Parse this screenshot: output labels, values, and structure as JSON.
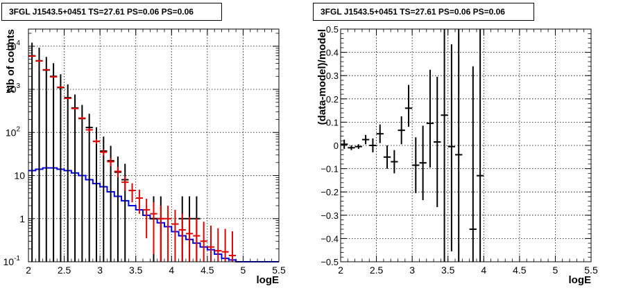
{
  "panels": [
    {
      "title": "3FGL J1543.5+0451 TS=27.61 PS=0.06 PS=0.06",
      "xlabel": "logE",
      "ylabel": "Nb of counts"
    },
    {
      "title": "3FGL J1543.5+0451 TS=27.61 PS=0.06 PS=0.06",
      "xlabel": "logE",
      "ylabel": "(data-model)/model"
    }
  ],
  "chart_data": [
    {
      "type": "line",
      "title": "3FGL J1543.5+0451 TS=27.61 PS=0.06 PS=0.06",
      "xlabel": "logE",
      "ylabel": "Nb of counts",
      "xlim": [
        2,
        5.5
      ],
      "ylim": [
        0.1,
        25000
      ],
      "yscale": "log",
      "grid": true,
      "xticks": [
        "2",
        "2.5",
        "3",
        "3.5",
        "4",
        "4.5",
        "5",
        "5.5"
      ],
      "yticks": [
        {
          "value": 0.1,
          "label": "10",
          "exp": "-1"
        },
        {
          "value": 1,
          "label": "1",
          "exp": ""
        },
        {
          "value": 10,
          "label": "10",
          "exp": ""
        },
        {
          "value": 100,
          "label": "10",
          "exp": "2"
        },
        {
          "value": 1000,
          "label": "10",
          "exp": "3"
        },
        {
          "value": 10000,
          "label": "10",
          "exp": "4"
        }
      ],
      "bin_width": 0.1,
      "bin_centers": [
        2.05,
        2.15,
        2.25,
        2.35,
        2.45,
        2.55,
        2.65,
        2.75,
        2.85,
        2.95,
        3.05,
        3.15,
        3.25,
        3.35,
        3.45,
        3.55,
        3.65,
        3.75,
        3.85,
        3.95,
        4.05,
        4.15,
        4.25,
        4.35,
        4.45,
        4.55,
        4.65,
        4.75,
        4.85,
        4.95,
        5.05,
        5.15,
        5.25,
        5.35,
        5.45
      ],
      "series": [
        {
          "name": "",
          "style": "data",
          "color": "#000000",
          "values": [
            6000,
            4600,
            2800,
            2000,
            1100,
            640,
            370,
            210,
            130,
            62,
            37,
            22,
            12,
            8,
            0,
            0,
            0,
            1,
            1,
            0,
            0,
            1,
            1,
            1,
            0,
            0,
            0,
            0,
            0,
            0,
            0,
            0,
            0,
            0,
            0
          ],
          "err_lo": [
            6000,
            4600,
            2800,
            2000,
            1100,
            640,
            370,
            210,
            130,
            62,
            37,
            22,
            12,
            8,
            0,
            0,
            0,
            1,
            1,
            0,
            0,
            1,
            1,
            1,
            0,
            0,
            0,
            0,
            0,
            0,
            0,
            0,
            0,
            0,
            0
          ],
          "err_hi": [
            6080,
            4670,
            2850,
            2045,
            1133,
            665,
            389,
            225,
            141,
            70,
            43,
            27,
            15.5,
            10.8,
            0,
            0,
            0,
            2.3,
            2.3,
            0,
            0,
            2.3,
            2.3,
            2.3,
            0,
            0,
            0,
            0,
            0,
            0,
            0,
            0,
            0,
            0,
            0
          ]
        },
        {
          "name": "",
          "style": "model",
          "color": "#e00000",
          "values": [
            5900,
            4550,
            2850,
            1950,
            1120,
            620,
            360,
            215,
            115,
            62,
            35,
            21,
            12.5,
            7,
            4.5,
            3,
            1.6,
            1.3,
            1,
            1,
            0.75,
            0.55,
            0.45,
            0.4,
            0.3,
            0.22,
            0.18,
            0.17,
            0.14,
            0,
            0,
            0,
            0,
            0,
            0
          ],
          "err_lo": [
            5823,
            4483,
            2797,
            1906,
            1087,
            595,
            341,
            200,
            104,
            54,
            29,
            16.4,
            9,
            4.4,
            2.4,
            1.3,
            0.35,
            0.15,
            0,
            0,
            0,
            0,
            0,
            0,
            0,
            0,
            0,
            0,
            0,
            0,
            0,
            0,
            0,
            0,
            0
          ],
          "err_hi": [
            5977,
            4617,
            2903,
            1994,
            1153,
            645,
            379,
            230,
            126,
            70,
            41,
            25.6,
            16,
            9.6,
            6.6,
            4.7,
            2.9,
            2.4,
            2,
            2,
            1.6,
            1.3,
            1.1,
            1.03,
            0.85,
            0.69,
            0.6,
            0.58,
            0.51,
            0,
            0,
            0,
            0,
            0,
            0
          ]
        },
        {
          "name": "",
          "style": "step",
          "color": "#0000e0",
          "values": [
            13,
            14,
            15,
            15,
            14,
            13,
            11.5,
            10,
            8,
            6.5,
            5.5,
            4.2,
            3.3,
            2.6,
            2,
            1.6,
            1.2,
            1.0,
            0.8,
            0.65,
            0.5,
            0.4,
            0.33,
            0.27,
            0.22,
            0.19,
            0.15,
            0.12,
            0.11,
            0.1,
            0.1,
            0.1,
            0.1,
            0.1,
            0.1
          ]
        }
      ]
    },
    {
      "type": "scatter",
      "title": "3FGL J1543.5+0451 TS=27.61 PS=0.06 PS=0.06",
      "xlabel": "logE",
      "ylabel": "(data-model)/model",
      "xlim": [
        2,
        5.5
      ],
      "ylim": [
        -0.5,
        0.5
      ],
      "grid": true,
      "xticks": [
        "2",
        "2.5",
        "3",
        "3.5",
        "4",
        "4.5",
        "5",
        "5.5"
      ],
      "yticks": [
        "−0.5",
        "−0.4",
        "−0.3",
        "−0.2",
        "−0.1",
        "0",
        "0.1",
        "0.2",
        "0.3",
        "0.4",
        "0.5"
      ],
      "bin_width": 0.1,
      "x": [
        2.05,
        2.15,
        2.25,
        2.35,
        2.45,
        2.55,
        2.65,
        2.75,
        2.85,
        2.95,
        3.05,
        3.15,
        3.25,
        3.35,
        3.45,
        3.55,
        3.65,
        3.85,
        3.95
      ],
      "y": [
        0.005,
        -0.01,
        -0.005,
        0.025,
        0,
        0.05,
        -0.05,
        -0.07,
        0.065,
        0.16,
        -0.085,
        -0.075,
        0.095,
        0.015,
        0.13,
        -0.005,
        -0.04,
        -0.36,
        -0.13
      ],
      "err_lo": [
        0.02,
        0.01,
        0.01,
        0.02,
        0.03,
        0.04,
        0.05,
        0.05,
        0.06,
        0.08,
        0.12,
        0.16,
        0.19,
        0.28,
        0.66,
        0.45,
        0.46,
        0.14,
        0.37
      ],
      "err_hi": [
        0.02,
        0.01,
        0.01,
        0.02,
        0.03,
        0.04,
        0.05,
        0.05,
        0.06,
        0.1,
        0.12,
        0.16,
        0.23,
        0.28,
        0.37,
        0.44,
        0.54,
        0.7,
        0.63
      ]
    }
  ]
}
